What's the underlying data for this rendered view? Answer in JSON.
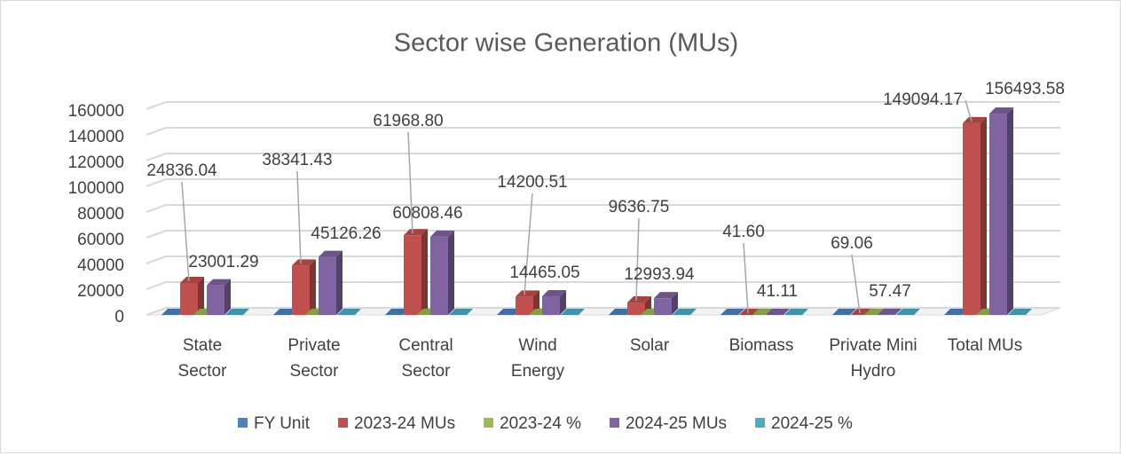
{
  "chart_data": {
    "type": "bar3d",
    "title": "Sector wise Generation (MUs)",
    "categories": [
      "State Sector",
      "Private Sector",
      "Central Sector",
      "Wind Energy",
      "Solar",
      "Biomass",
      "Private Mini Hydro",
      "Total MUs"
    ],
    "series": [
      {
        "name": "FY Unit",
        "color": "#4f81bd",
        "values": [
          0,
          0,
          0,
          0,
          0,
          0,
          0,
          0
        ]
      },
      {
        "name": "2023-24 MUs",
        "color": "#c0504d",
        "values": [
          24836.04,
          38341.43,
          61968.8,
          14200.51,
          9636.75,
          41.6,
          69.06,
          149094.17
        ],
        "value_labels": [
          "24836.04",
          "38341.43",
          "61968.80",
          "14200.51",
          "9636.75",
          "41.60",
          "69.06",
          "149094.17"
        ]
      },
      {
        "name": "2023-24 %",
        "color": "#9bbb59",
        "values": [
          0,
          0,
          0,
          0,
          0,
          0,
          0,
          0
        ]
      },
      {
        "name": "2024-25 MUs",
        "color": "#8064a2",
        "values": [
          23001.29,
          45126.26,
          60808.46,
          14465.05,
          12993.94,
          41.11,
          57.47,
          156493.58
        ],
        "value_labels": [
          "23001.29",
          "45126.26",
          "60808.46",
          "14465.05",
          "12993.94",
          "41.11",
          "57.47",
          "156493.58"
        ]
      },
      {
        "name": "2024-25 %",
        "color": "#4bacc6",
        "values": [
          0,
          0,
          0,
          0,
          0,
          0,
          0,
          0
        ]
      }
    ],
    "ylim": [
      0,
      160000
    ],
    "yticks": [
      0,
      20000,
      40000,
      60000,
      80000,
      100000,
      120000,
      140000,
      160000
    ],
    "grid": true,
    "legend": "bottom"
  }
}
